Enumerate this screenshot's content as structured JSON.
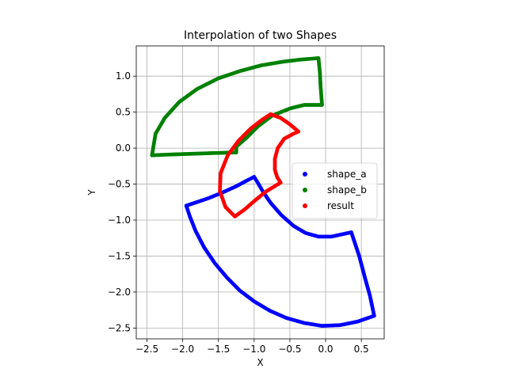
{
  "chart_data": {
    "type": "scatter",
    "title": "Interpolation of two Shapes",
    "xlabel": "X",
    "ylabel": "Y",
    "xlim": [
      -2.65,
      0.82
    ],
    "ylim": [
      -2.65,
      1.42
    ],
    "xticks": [
      -2.5,
      -2.0,
      -1.5,
      -1.0,
      -0.5,
      0.0,
      0.5
    ],
    "xtick_labels": [
      "−2.5",
      "−2.0",
      "−1.5",
      "−1.0",
      "−0.5",
      "0.0",
      "0.5"
    ],
    "yticks": [
      -2.5,
      -2.0,
      -1.5,
      -1.0,
      -0.5,
      0.0,
      0.5,
      1.0
    ],
    "ytick_labels": [
      "−2.5",
      "−2.0",
      "−1.5",
      "−1.0",
      "−0.5",
      "0.0",
      "0.5",
      "1.0"
    ],
    "grid": true,
    "legend_position": "right",
    "series": [
      {
        "name": "shape_a",
        "color": "#0000ff",
        "outline": [
          [
            -1.0,
            -0.4
          ],
          [
            -1.1,
            -0.45
          ],
          [
            -1.25,
            -0.53
          ],
          [
            -1.45,
            -0.62
          ],
          [
            -1.65,
            -0.7
          ],
          [
            -1.95,
            -0.8
          ],
          [
            -1.9,
            -0.95
          ],
          [
            -1.82,
            -1.15
          ],
          [
            -1.7,
            -1.38
          ],
          [
            -1.55,
            -1.6
          ],
          [
            -1.38,
            -1.8
          ],
          [
            -1.2,
            -1.98
          ],
          [
            -1.0,
            -2.13
          ],
          [
            -0.78,
            -2.26
          ],
          [
            -0.55,
            -2.36
          ],
          [
            -0.3,
            -2.43
          ],
          [
            -0.05,
            -2.47
          ],
          [
            0.2,
            -2.46
          ],
          [
            0.45,
            -2.41
          ],
          [
            0.68,
            -2.33
          ],
          [
            0.62,
            -2.05
          ],
          [
            0.55,
            -1.8
          ],
          [
            0.47,
            -1.5
          ],
          [
            0.36,
            -1.17
          ],
          [
            0.22,
            -1.2
          ],
          [
            0.08,
            -1.23
          ],
          [
            -0.1,
            -1.23
          ],
          [
            -0.28,
            -1.18
          ],
          [
            -0.45,
            -1.08
          ],
          [
            -0.62,
            -0.93
          ],
          [
            -0.77,
            -0.76
          ],
          [
            -0.88,
            -0.6
          ],
          [
            -0.95,
            -0.48
          ],
          [
            -1.0,
            -0.4
          ]
        ]
      },
      {
        "name": "shape_b",
        "color": "#008000",
        "outline": [
          [
            -0.1,
            1.25
          ],
          [
            -0.35,
            1.23
          ],
          [
            -0.6,
            1.2
          ],
          [
            -0.9,
            1.15
          ],
          [
            -1.2,
            1.07
          ],
          [
            -1.5,
            0.97
          ],
          [
            -1.8,
            0.82
          ],
          [
            -2.05,
            0.64
          ],
          [
            -2.25,
            0.42
          ],
          [
            -2.38,
            0.2
          ],
          [
            -2.43,
            -0.1
          ],
          [
            -2.2,
            -0.09
          ],
          [
            -1.9,
            -0.08
          ],
          [
            -1.6,
            -0.07
          ],
          [
            -1.25,
            -0.06
          ],
          [
            -1.25,
            0.02
          ],
          [
            -1.1,
            0.15
          ],
          [
            -0.95,
            0.3
          ],
          [
            -0.75,
            0.45
          ],
          [
            -0.5,
            0.55
          ],
          [
            -0.3,
            0.6
          ],
          [
            -0.05,
            0.6
          ],
          [
            -0.07,
            0.85
          ],
          [
            -0.08,
            1.05
          ],
          [
            -0.1,
            1.25
          ]
        ]
      },
      {
        "name": "result",
        "color": "#ff0000",
        "outline": [
          [
            -0.77,
            0.47
          ],
          [
            -0.88,
            0.4
          ],
          [
            -1.05,
            0.27
          ],
          [
            -1.22,
            0.1
          ],
          [
            -1.37,
            -0.1
          ],
          [
            -1.47,
            -0.35
          ],
          [
            -1.48,
            -0.6
          ],
          [
            -1.4,
            -0.82
          ],
          [
            -1.27,
            -0.95
          ],
          [
            -1.13,
            -0.85
          ],
          [
            -0.98,
            -0.72
          ],
          [
            -0.83,
            -0.6
          ],
          [
            -0.63,
            -0.48
          ],
          [
            -0.68,
            -0.4
          ],
          [
            -0.71,
            -0.3
          ],
          [
            -0.71,
            -0.15
          ],
          [
            -0.67,
            0.0
          ],
          [
            -0.58,
            0.13
          ],
          [
            -0.45,
            0.2
          ],
          [
            -0.38,
            0.23
          ],
          [
            -0.5,
            0.33
          ],
          [
            -0.63,
            0.42
          ],
          [
            -0.77,
            0.47
          ]
        ]
      }
    ]
  }
}
